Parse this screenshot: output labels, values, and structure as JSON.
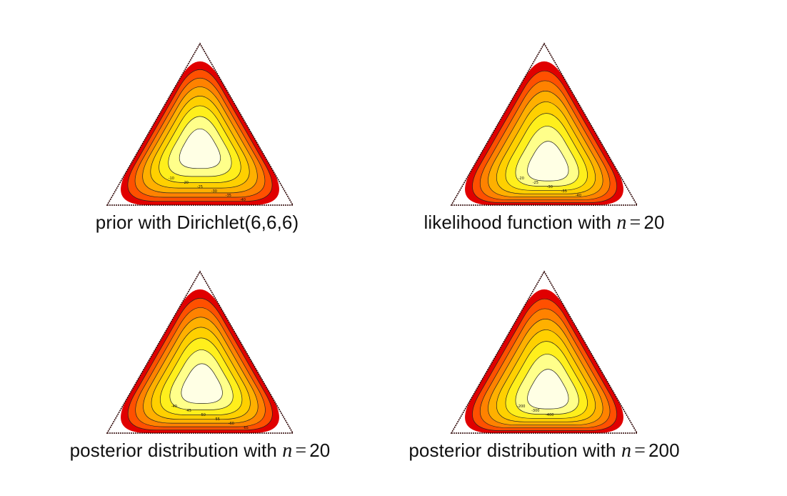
{
  "panels": [
    {
      "id": "prior",
      "caption": "prior with Dirichlet(6,6,6)",
      "caption_var": "",
      "caption_eq": "",
      "caption_value": "",
      "center": [
        0.333,
        0.333
      ],
      "levels": [
        "-10",
        "-20",
        "-25",
        "-30",
        "-35",
        "-40"
      ],
      "colors": [
        "#ffffe4",
        "#ffff8a",
        "#ffef1c",
        "#ffd000",
        "#ffb000",
        "#ff8200",
        "#ff5000",
        "#e00000"
      ]
    },
    {
      "id": "likelihood",
      "caption": "likelihood function with ",
      "caption_var": "n",
      "caption_eq": "=",
      "caption_value": "20",
      "center": [
        0.42,
        0.22
      ],
      "levels": [
        "-20",
        "-25",
        "-30",
        "-35",
        "-40"
      ],
      "colors": [
        "#ffffe4",
        "#ffff8a",
        "#ffef1c",
        "#ffd000",
        "#ffb000",
        "#ff8200",
        "#ff5000",
        "#e00000"
      ]
    },
    {
      "id": "posterior20",
      "caption": "posterior distribution with ",
      "caption_var": "n",
      "caption_eq": "=",
      "caption_value": "20",
      "center": [
        0.38,
        0.27
      ],
      "levels": [
        "-40",
        "-45",
        "-50",
        "-55",
        "-60",
        "-65"
      ],
      "colors": [
        "#ffffe4",
        "#ffff8a",
        "#ffef1c",
        "#ffd000",
        "#ffb000",
        "#ff8200",
        "#ff5000",
        "#e00000"
      ]
    },
    {
      "id": "posterior200",
      "caption": "posterior distribution with ",
      "caption_var": "n",
      "caption_eq": "=",
      "caption_value": "200",
      "center": [
        0.42,
        0.22
      ],
      "levels": [
        "-200",
        "-300",
        "-400"
      ],
      "colors": [
        "#ffffe4",
        "#ffff8a",
        "#ffef1c",
        "#ffd000",
        "#ffb000",
        "#ff8200",
        "#ff5000",
        "#e00000"
      ]
    }
  ]
}
